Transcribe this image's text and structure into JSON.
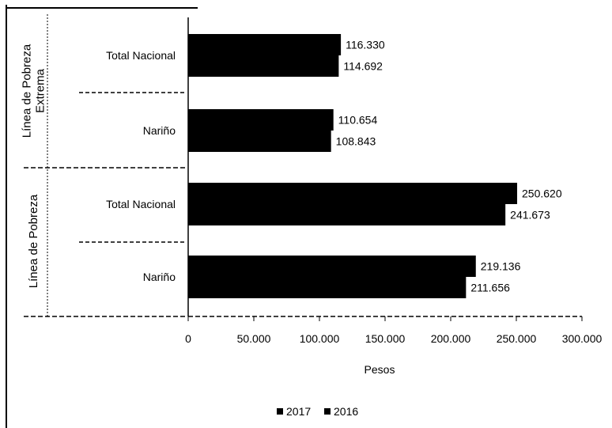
{
  "chart_data": {
    "type": "bar",
    "orientation": "horizontal",
    "title": "",
    "xlabel": "Pesos",
    "ylabel": "",
    "xlim": [
      0,
      300000
    ],
    "x_ticks": [
      "0",
      "50.000",
      "100.000",
      "150.000",
      "200.000",
      "250.000",
      "300.000"
    ],
    "x_tick_values": [
      0,
      50000,
      100000,
      150000,
      200000,
      250000,
      300000
    ],
    "groups": [
      {
        "label": "Línea de Pobreza Extrema",
        "categories": [
          "Total Nacional",
          "Nariño"
        ]
      },
      {
        "label": "Línea de Pobreza",
        "categories": [
          "Total Nacional",
          "Nariño"
        ]
      }
    ],
    "categories": [
      "Total Nacional",
      "Nariño",
      "Total Nacional",
      "Nariño"
    ],
    "series": [
      {
        "name": "2017",
        "values": [
          116330,
          110654,
          250620,
          219136
        ],
        "labels": [
          "116.330",
          "110.654",
          "250.620",
          "219.136"
        ]
      },
      {
        "name": "2016",
        "values": [
          114692,
          108843,
          241673,
          211656
        ],
        "labels": [
          "114.692",
          "108.843",
          "241.673",
          "211.656"
        ]
      }
    ],
    "legend_position": "bottom",
    "grid": false
  }
}
